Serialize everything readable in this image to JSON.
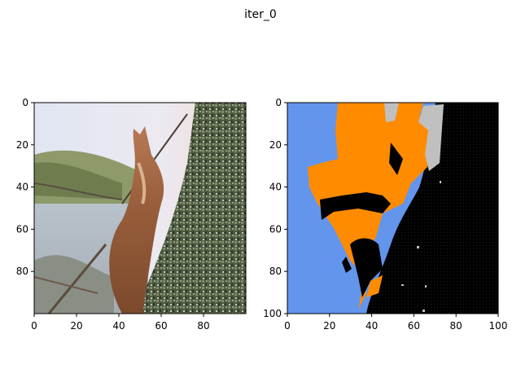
{
  "figure": {
    "title": "iter_0"
  },
  "chart_data": [
    {
      "type": "image",
      "content": "photo of a red squirrel climbing a lichen-covered tree trunk (pixelated 100x100)",
      "xlim": [
        0,
        100
      ],
      "ylim": [
        100,
        0
      ],
      "xticks": [
        "0",
        "20",
        "40",
        "60",
        "80"
      ],
      "yticks": [
        "0",
        "20",
        "40",
        "60",
        "80"
      ]
    },
    {
      "type": "heatmap",
      "content": "segmentation label map of the squirrel image",
      "xlim": [
        0,
        100
      ],
      "ylim": [
        100,
        0
      ],
      "xticks": [
        "0",
        "20",
        "40",
        "60",
        "80",
        "100"
      ],
      "yticks": [
        "0",
        "20",
        "40",
        "60",
        "80",
        "100"
      ],
      "label_colors": {
        "background": "#6495ed",
        "squirrel": "#ff8c00",
        "tree": "#000000",
        "other": "#c0c0c0"
      }
    }
  ]
}
